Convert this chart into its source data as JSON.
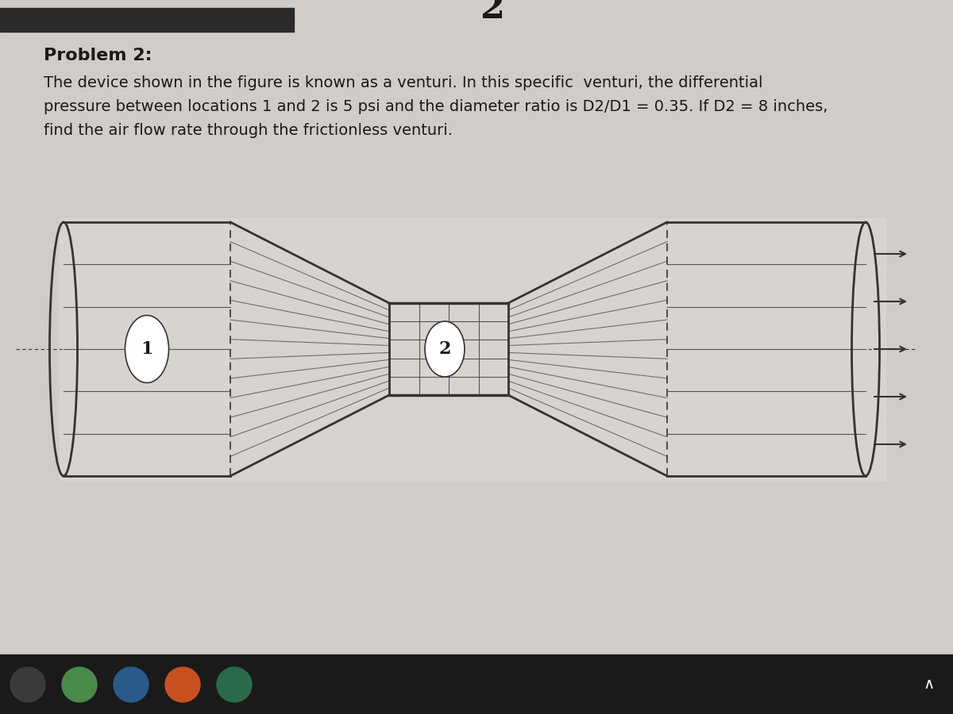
{
  "bg_color_top": "#d4d0cc",
  "bg_color": "#d0ccc8",
  "text_color": "#1a1a1a",
  "line_color": "#333333",
  "line_color_thin": "#555555",
  "problem_title": "Problem 2:",
  "problem_text_line1": "The device shown in the figure is known as a venturi. In this specific  venturi, the differential",
  "problem_text_line2": "pressure between locations 1 and 2 is 5 psi and the diameter ratio is D2/D1 = 0.35. If D2 = 8 inches,",
  "problem_text_line3": "find the air flow rate through the frictionless venturi.",
  "label_1": "1",
  "label_2": "2",
  "fig_width": 12.0,
  "fig_height": 9.0,
  "dpi": 100,
  "top_bar_color": "#2a2a2a",
  "prev_num_color": "#1a1a1a"
}
